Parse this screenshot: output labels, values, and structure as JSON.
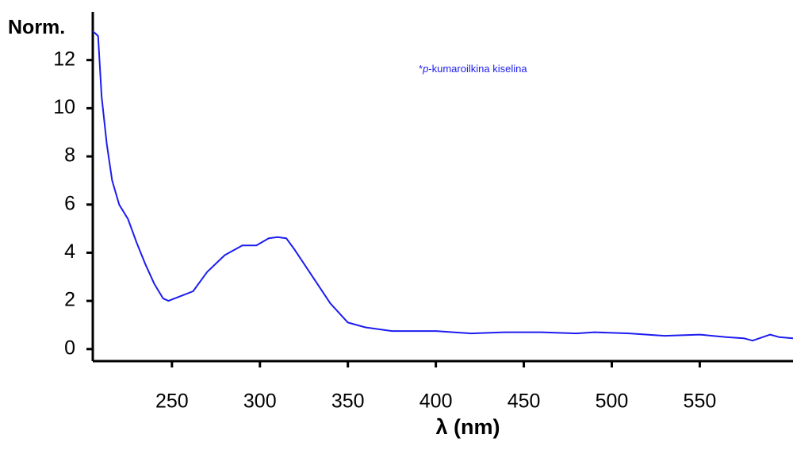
{
  "chart_data": {
    "type": "line",
    "y_label": "Norm.",
    "x_label": "λ (nm)",
    "annotation": [
      "*",
      "p",
      "-kumaroilkina kiselina"
    ],
    "x": [
      205,
      208,
      210,
      213,
      216,
      220,
      225,
      230,
      235,
      240,
      245,
      248,
      255,
      262,
      270,
      280,
      290,
      298,
      305,
      310,
      315,
      320,
      330,
      340,
      350,
      360,
      375,
      390,
      400,
      420,
      440,
      460,
      480,
      490,
      510,
      530,
      550,
      565,
      575,
      580,
      590,
      595,
      603
    ],
    "series": [
      {
        "color": "#1c1cf0",
        "values": [
          13.2,
          13.0,
          10.5,
          8.5,
          7.0,
          6.0,
          5.4,
          4.4,
          3.5,
          2.7,
          2.1,
          2.0,
          2.2,
          2.4,
          3.2,
          3.9,
          4.3,
          4.3,
          4.6,
          4.65,
          4.6,
          4.1,
          3.0,
          1.9,
          1.1,
          0.9,
          0.75,
          0.75,
          0.75,
          0.65,
          0.7,
          0.7,
          0.65,
          0.7,
          0.65,
          0.55,
          0.6,
          0.5,
          0.45,
          0.35,
          0.6,
          0.5,
          0.45
        ]
      }
    ],
    "xlim": [
      205,
      603
    ],
    "ylim": [
      -0.5,
      14
    ],
    "xticks": [
      250,
      300,
      350,
      400,
      450,
      500,
      550
    ],
    "yticks": [
      0,
      2,
      4,
      6,
      8,
      10,
      12
    ]
  }
}
